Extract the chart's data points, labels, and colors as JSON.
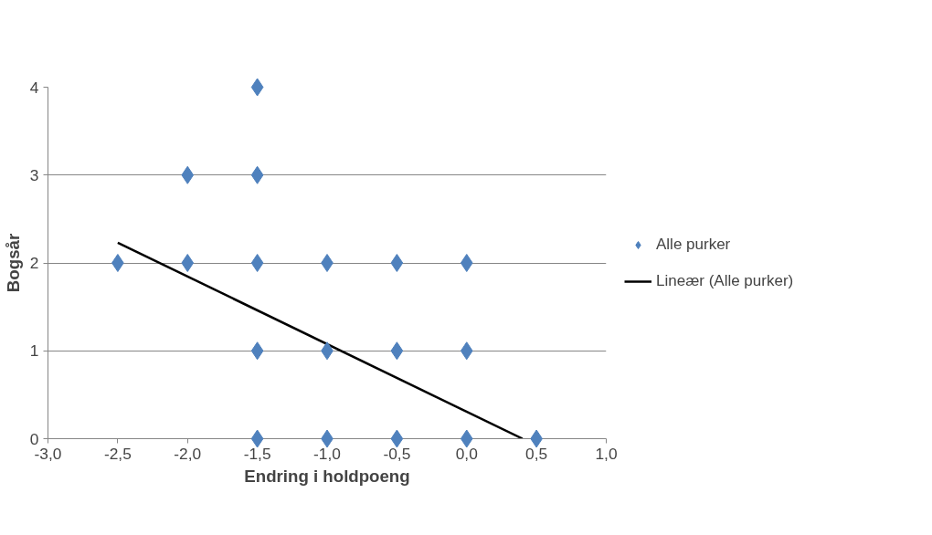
{
  "chart_data": {
    "type": "scatter",
    "xlabel": "Endring i holdpoeng",
    "ylabel": "Bogsår",
    "xlim": [
      -3,
      1
    ],
    "ylim": [
      0,
      4
    ],
    "xticks": [
      {
        "value": -3,
        "label": "-3,0"
      },
      {
        "value": -2.5,
        "label": "-2,5"
      },
      {
        "value": -2,
        "label": "-2,0"
      },
      {
        "value": -1.5,
        "label": "-1,5"
      },
      {
        "value": -1,
        "label": "-1,0"
      },
      {
        "value": -0.5,
        "label": "-0,5"
      },
      {
        "value": 0,
        "label": "0,0"
      },
      {
        "value": 0.5,
        "label": "0,5"
      },
      {
        "value": 1,
        "label": "1,0"
      }
    ],
    "yticks": [
      0,
      1,
      2,
      3,
      4
    ],
    "grid": "y",
    "legend": "right",
    "series": [
      {
        "name": "Alle purker",
        "marker": "diamond",
        "color": "#4f81bd",
        "x": [
          -1.5,
          -2,
          -1.5,
          -2.5,
          -2,
          -1.5,
          -1,
          -0.5,
          0,
          -1.5,
          -1,
          -0.5,
          0,
          -1.5,
          -1,
          -0.5,
          0,
          0.5
        ],
        "values": [
          4,
          3,
          3,
          2,
          2,
          2,
          2,
          2,
          2,
          1,
          1,
          1,
          1,
          0,
          0,
          0,
          0,
          0
        ]
      },
      {
        "name": "Lineær (Alle purker)",
        "type": "line",
        "marker": "none",
        "line_style": "solid",
        "color": "#000000",
        "x": [
          -2.5,
          0.4
        ],
        "values": [
          2.23,
          0
        ]
      }
    ]
  }
}
